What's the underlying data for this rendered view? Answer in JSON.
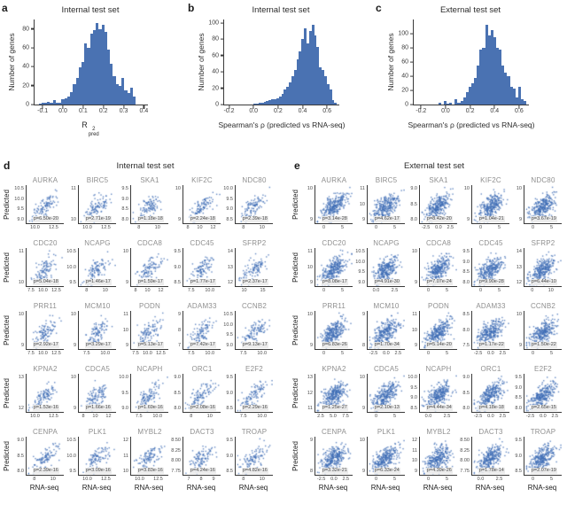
{
  "chart_data": [
    {
      "id": "a",
      "type": "bar",
      "letter": "a",
      "title": "Internal test set",
      "ylabel": "Number of genes",
      "xlabel_base": "R",
      "xlabel_sup": "2",
      "xlabel_sub": "pred",
      "axis_range": [
        -0.14,
        0.42
      ],
      "bar_range": [
        -0.12,
        0.36
      ],
      "xticks": [
        "-0.1",
        "0.0",
        "0.1",
        "0.2",
        "0.3",
        "0.4"
      ],
      "yticks": [
        "0",
        "20",
        "40",
        "60",
        "80"
      ],
      "ylim": [
        0,
        90
      ],
      "bin_counts": [
        1,
        2,
        2,
        3,
        2,
        5,
        2,
        2,
        6,
        7,
        8,
        13,
        22,
        28,
        39,
        45,
        65,
        60,
        75,
        79,
        86,
        80,
        84,
        77,
        58,
        43,
        30,
        22,
        20,
        28,
        15,
        12,
        18,
        8
      ]
    },
    {
      "id": "b",
      "type": "bar",
      "letter": "b",
      "title": "Internal test set",
      "ylabel": "Number of genes",
      "xlabel": "Spearman's ρ (predicted vs RNA-seq)",
      "axis_range": [
        -0.24,
        0.7
      ],
      "bar_range": [
        0.0,
        0.68
      ],
      "xticks": [
        "-0.2",
        "0.0",
        "0.2",
        "0.4",
        "0.6"
      ],
      "yticks": [
        "0",
        "20",
        "40",
        "60",
        "80",
        "100"
      ],
      "ylim": [
        0,
        104
      ],
      "bin_counts": [
        1,
        1,
        2,
        2,
        3,
        4,
        5,
        6,
        6,
        8,
        10,
        13,
        18,
        22,
        27,
        35,
        42,
        55,
        65,
        80,
        93,
        75,
        90,
        97,
        85,
        70,
        45,
        42,
        35,
        25,
        18,
        5,
        2
      ]
    },
    {
      "id": "c",
      "type": "bar",
      "letter": "c",
      "title": "External test set",
      "ylabel": "Number of genes",
      "xlabel": "Spearman's ρ (predicted vs RNA-seq)",
      "axis_range": [
        -0.26,
        0.68
      ],
      "bar_range": [
        -0.06,
        0.66
      ],
      "xticks": [
        "-0.2",
        "0.0",
        "0.2",
        "0.4",
        "0.6"
      ],
      "yticks": [
        "0",
        "20",
        "40",
        "60",
        "80",
        "100"
      ],
      "ylim": [
        0,
        120
      ],
      "bin_counts": [
        2,
        0,
        5,
        1,
        2,
        0,
        8,
        3,
        5,
        10,
        18,
        25,
        30,
        38,
        55,
        78,
        80,
        112,
        97,
        105,
        95,
        80,
        78,
        55,
        45,
        40,
        25,
        22,
        10,
        25,
        8,
        5
      ]
    },
    {
      "id": "d",
      "type": "scatter",
      "letter": "d",
      "title": "Internal test set",
      "ylabel": "Predicted",
      "xlabel": "RNA-seq",
      "points_per_plot": 100,
      "approx_correlation": 0.66,
      "cells": [
        {
          "gene": "AURKA",
          "p": "p=6.50e-20",
          "yticks": [
            "10.5",
            "10.0",
            "9.5",
            "9.0"
          ],
          "xticks": [
            "10.0",
            "12.5"
          ]
        },
        {
          "gene": "BIRC5",
          "p": "p=2.71e-19",
          "yticks": [
            "11",
            "10"
          ],
          "xticks": [
            "10.0",
            "12.5"
          ]
        },
        {
          "gene": "SKA1",
          "p": "p=1.18e-18",
          "yticks": [
            "9.5",
            "9.0",
            "8.5",
            "8.0"
          ],
          "xticks": [
            "8",
            "10"
          ]
        },
        {
          "gene": "KIF2C",
          "p": "p=2.24e-18",
          "yticks": [
            "10",
            "9"
          ],
          "xticks": [
            "8",
            "10",
            "12"
          ]
        },
        {
          "gene": "NDC80",
          "p": "p=2.39e-18",
          "yticks": [
            "10.0",
            "9.5",
            "9.0",
            "8.5"
          ],
          "xticks": [
            "8",
            "10"
          ]
        },
        {
          "gene": "CDC20",
          "p": "p=5.04e-18",
          "yticks": [
            "11",
            "10"
          ],
          "xticks": [
            "7.5",
            "10.0",
            "12.5"
          ]
        },
        {
          "gene": "NCAPG",
          "p": "p=1.46e-17",
          "yticks": [
            "10.5",
            "10.0",
            "9.5"
          ],
          "xticks": [
            "8",
            "10"
          ]
        },
        {
          "gene": "CDCA8",
          "p": "p=1.59e-17",
          "yticks": [
            "10",
            "9"
          ],
          "xticks": [
            "8",
            "10",
            "12"
          ]
        },
        {
          "gene": "CDC45",
          "p": "p=1.77e-17",
          "yticks": [
            "9.5",
            "9.0",
            "8.5"
          ],
          "xticks": [
            "7.5",
            "10.0"
          ]
        },
        {
          "gene": "SFRP2",
          "p": "p=2.37e-17",
          "yticks": [
            "14",
            "13",
            "12"
          ],
          "xticks": [
            "10",
            "15"
          ]
        },
        {
          "gene": "PRR11",
          "p": "p=2.92e-17",
          "yticks": [
            "10",
            "9"
          ],
          "xticks": [
            "7.5",
            "10.0",
            "12.5"
          ]
        },
        {
          "gene": "MCM10",
          "p": "p=3.29e-17",
          "yticks": [
            "10",
            "9"
          ],
          "xticks": [
            "7.5",
            "10.0"
          ]
        },
        {
          "gene": "PODN",
          "p": "p=5.13e-17",
          "yticks": [
            "11",
            "10",
            "9"
          ],
          "xticks": [
            "7.5",
            "10.0",
            "12.5"
          ]
        },
        {
          "gene": "ADAM33",
          "p": "p=7.42e-17",
          "yticks": [
            "9",
            "8",
            "7"
          ],
          "xticks": [
            "7.5",
            "10.0"
          ]
        },
        {
          "gene": "CCNB2",
          "p": "p=9.13e-17",
          "yticks": [
            "10.5",
            "10.0",
            "9.5",
            "9.0"
          ],
          "xticks": [
            "7.5",
            "10.0"
          ]
        },
        {
          "gene": "KPNA2",
          "p": "p=1.53e-16",
          "yticks": [
            "13",
            "12"
          ],
          "xticks": [
            "10.0",
            "12.5"
          ]
        },
        {
          "gene": "CDCA5",
          "p": "p=1.66e-16",
          "yticks": [
            "10",
            "9"
          ],
          "xticks": [
            "8",
            "10",
            "12"
          ]
        },
        {
          "gene": "NCAPH",
          "p": "p=1.69e-16",
          "yticks": [
            "10.0",
            "9.5",
            "9.0"
          ],
          "xticks": [
            "7.5",
            "10.0"
          ]
        },
        {
          "gene": "ORC1",
          "p": "p=2.08e-16",
          "yticks": [
            "9.0",
            "8.5",
            "8.0"
          ],
          "xticks": [
            "8",
            "10"
          ]
        },
        {
          "gene": "E2F2",
          "p": "p=2.29e-16",
          "yticks": [
            "9.5",
            "9.0",
            "8.5"
          ],
          "xticks": [
            "7.5",
            "10.0"
          ]
        },
        {
          "gene": "CENPA",
          "p": "p=2.39e-16",
          "yticks": [
            "9.0",
            "8.5",
            "8.0"
          ],
          "xticks": [
            "8",
            "10"
          ]
        },
        {
          "gene": "PLK1",
          "p": "p=3.09e-16",
          "yticks": [
            "10.5",
            "10.0",
            "9.5"
          ],
          "xticks": [
            "10.0",
            "12.5"
          ]
        },
        {
          "gene": "MYBL2",
          "p": "p=3.83e-16",
          "yticks": [
            "12",
            "11",
            "10"
          ],
          "xticks": [
            "10.0",
            "12.5"
          ]
        },
        {
          "gene": "DACT3",
          "p": "p=4.24e-16",
          "yticks": [
            "8.50",
            "8.25",
            "8.00",
            "7.75"
          ],
          "xticks": [
            "7",
            "8",
            "9"
          ]
        },
        {
          "gene": "TROAP",
          "p": "p=4.82e-16",
          "yticks": [
            "9.5",
            "9.0",
            "8.5"
          ],
          "xticks": [
            "8",
            "10"
          ]
        }
      ]
    },
    {
      "id": "e",
      "type": "scatter",
      "letter": "e",
      "title": "External test set",
      "ylabel": "Predicted",
      "xlabel": "RNA-seq",
      "points_per_plot": 280,
      "approx_correlation": 0.58,
      "cells": [
        {
          "gene": "AURKA",
          "p": "p=3.14e-28",
          "yticks": [
            "10",
            "9"
          ],
          "xticks": [
            "0",
            "5"
          ]
        },
        {
          "gene": "BIRC5",
          "p": "p=4.62e-17",
          "yticks": [
            "11",
            "10",
            "9"
          ],
          "xticks": [
            "0",
            "5"
          ]
        },
        {
          "gene": "SKA1",
          "p": "p=8.42e-20",
          "yticks": [
            "9.0",
            "8.5",
            "8.0"
          ],
          "xticks": [
            "-2.5",
            "0.0",
            "2.5"
          ]
        },
        {
          "gene": "KIF2C",
          "p": "p=1.04e-21",
          "yticks": [
            "10",
            "9"
          ],
          "xticks": [
            "0",
            "5"
          ]
        },
        {
          "gene": "NDC80",
          "p": "p=3.67e-19",
          "yticks": [
            "10",
            "9"
          ],
          "xticks": [
            "0",
            "5"
          ]
        },
        {
          "gene": "CDC20",
          "p": "p=8.08e-17",
          "yticks": [
            "11",
            "10",
            "9"
          ],
          "xticks": [
            "0",
            "5"
          ]
        },
        {
          "gene": "NCAPG",
          "p": "p=4.91e-30",
          "yticks": [
            "10.5",
            "10.0",
            "9.5",
            "9.0"
          ],
          "xticks": [
            "0.0",
            "2.5"
          ]
        },
        {
          "gene": "CDCA8",
          "p": "p=7.07e-24",
          "yticks": [
            "10",
            "9"
          ],
          "xticks": [
            "0",
            "5"
          ]
        },
        {
          "gene": "CDC45",
          "p": "p=9.90e-28",
          "yticks": [
            "9.5",
            "9.0",
            "8.5",
            "8.0"
          ],
          "xticks": [
            "0",
            "5"
          ]
        },
        {
          "gene": "SFRP2",
          "p": "p=6.44e-10",
          "yticks": [
            "14",
            "13",
            "12"
          ],
          "xticks": [
            "0",
            "10"
          ]
        },
        {
          "gene": "PRR11",
          "p": "p=6.83e-26",
          "yticks": [
            "10",
            "9"
          ],
          "xticks": [
            "0",
            "5"
          ]
        },
        {
          "gene": "MCM10",
          "p": "p=1.70e-34",
          "yticks": [
            "9",
            "8"
          ],
          "xticks": [
            "-2.5",
            "0.0",
            "2.5"
          ]
        },
        {
          "gene": "PODN",
          "p": "p=5.14e-20",
          "yticks": [
            "11",
            "10",
            "9"
          ],
          "xticks": [
            "0",
            "5"
          ]
        },
        {
          "gene": "ADAM33",
          "p": "p=1.17e-22",
          "yticks": [
            "8.5",
            "8.0",
            "7.5"
          ],
          "xticks": [
            "-2.5",
            "0.0",
            "2.5"
          ]
        },
        {
          "gene": "CCNB2",
          "p": "p=1.50e-22",
          "yticks": [
            "10",
            "9"
          ],
          "xticks": [
            "0",
            "5"
          ]
        },
        {
          "gene": "KPNA2",
          "p": "p=1.25e-27",
          "yticks": [
            "13",
            "12",
            "11"
          ],
          "xticks": [
            "2.5",
            "5.0",
            "7.5"
          ]
        },
        {
          "gene": "CDCA5",
          "p": "p=2.10e-13",
          "yticks": [
            "10",
            "9"
          ],
          "xticks": [
            "0",
            "5"
          ]
        },
        {
          "gene": "NCAPH",
          "p": "p=4.44e-34",
          "yticks": [
            "10.0",
            "9.5",
            "9.0",
            "8.5"
          ],
          "xticks": [
            "0.0",
            "2.5"
          ]
        },
        {
          "gene": "ORC1",
          "p": "p=4.18e-18",
          "yticks": [
            "9.0",
            "8.5",
            "8.0"
          ],
          "xticks": [
            "-2.5",
            "0.0",
            "2.5"
          ]
        },
        {
          "gene": "E2F2",
          "p": "p=2.65e-15",
          "yticks": [
            "9.5",
            "9.0",
            "8.5",
            "8.0"
          ],
          "xticks": [
            "-2.5",
            "0.0",
            "2.5"
          ]
        },
        {
          "gene": "CENPA",
          "p": "p=3.32e-21",
          "yticks": [
            "9",
            "8"
          ],
          "xticks": [
            "-2.5",
            "0.0",
            "2.5"
          ]
        },
        {
          "gene": "PLK1",
          "p": "p=6.33e-24",
          "yticks": [
            "10",
            "9"
          ],
          "xticks": [
            "0",
            "5"
          ]
        },
        {
          "gene": "MYBL2",
          "p": "p=4.39e-26",
          "yticks": [
            "12",
            "11",
            "10",
            "9"
          ],
          "xticks": [
            "0",
            "5"
          ]
        },
        {
          "gene": "DACT3",
          "p": "p=1.78e-14",
          "yticks": [
            "8.50",
            "8.25",
            "8.00",
            "7.75"
          ],
          "xticks": [
            "0.0",
            "2.5"
          ]
        },
        {
          "gene": "TROAP",
          "p": "p=2.07e-19",
          "yticks": [
            "9.5",
            "9.0",
            "8.5"
          ],
          "xticks": [
            "0",
            "5"
          ]
        }
      ]
    }
  ],
  "colors": {
    "bar": "#4a72b2",
    "point": "#3e6db5",
    "spine": "#3a3a3a",
    "gene_label": "#8f8f8f"
  }
}
